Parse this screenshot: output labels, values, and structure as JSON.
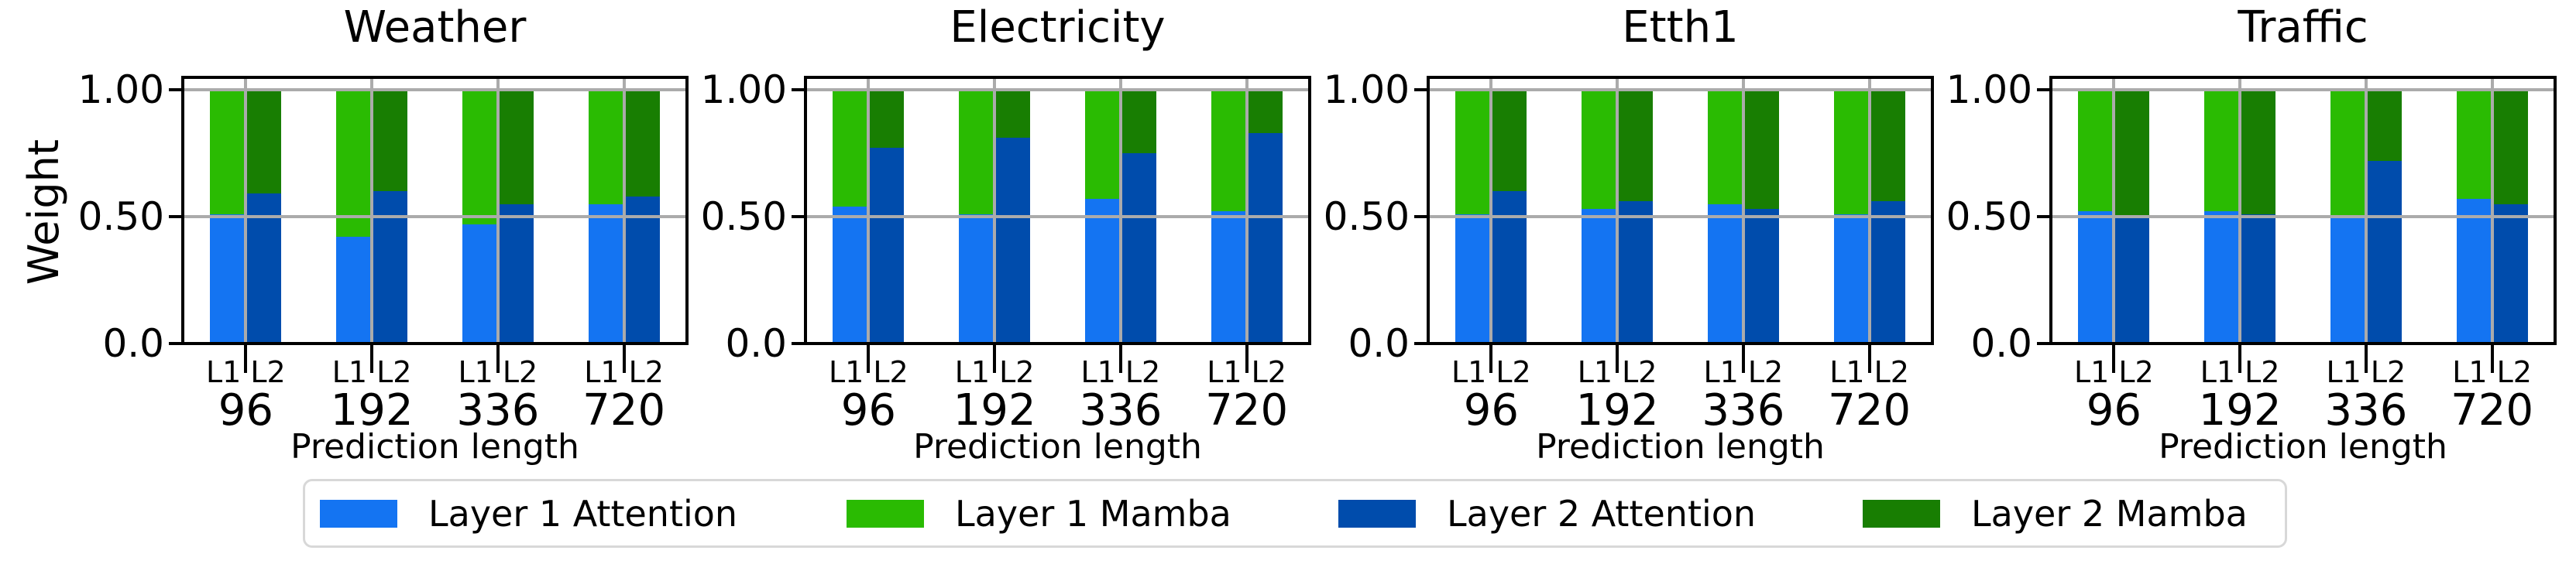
{
  "chart_data": {
    "type": "bar",
    "stacked": true,
    "ylabel": "Weight",
    "xlabel": "Prediction length",
    "ylim": [
      0,
      1.05
    ],
    "grid": true,
    "grid_color": "#ABABAB",
    "yticks": [
      {
        "label": "1.00",
        "value": 1.0
      },
      {
        "label": "0.50",
        "value": 0.5
      },
      {
        "label": "0.0",
        "value": 0.0
      }
    ],
    "bar_group_labels": [
      "L1",
      "L2"
    ],
    "categories": [
      "96",
      "192",
      "336",
      "720"
    ],
    "legend_position": "bottom",
    "series_colors": {
      "layer1_attention": "#1474F2",
      "layer1_mamba": "#2ABB02",
      "layer2_attention": "#004CAC",
      "layer2_mamba": "#187E02"
    },
    "legend": [
      {
        "label": "Layer 1 Attention",
        "color": "#1474F2",
        "color_key": "layer1_attention"
      },
      {
        "label": "Layer 1 Mamba",
        "color": "#2ABB02",
        "color_key": "layer1_mamba"
      },
      {
        "label": "Layer 2 Attention",
        "color": "#004CAC",
        "color_key": "layer2_attention"
      },
      {
        "label": "Layer 2 Mamba",
        "color": "#187E02",
        "color_key": "layer2_mamba"
      }
    ],
    "subplots": [
      {
        "title": "Weather",
        "groups": [
          {
            "prediction_length": "96",
            "l1_attention": 0.51,
            "l1_mamba": 0.49,
            "l2_attention": 0.59,
            "l2_mamba": 0.41
          },
          {
            "prediction_length": "192",
            "l1_attention": 0.42,
            "l1_mamba": 0.58,
            "l2_attention": 0.6,
            "l2_mamba": 0.4
          },
          {
            "prediction_length": "336",
            "l1_attention": 0.47,
            "l1_mamba": 0.53,
            "l2_attention": 0.55,
            "l2_mamba": 0.45
          },
          {
            "prediction_length": "720",
            "l1_attention": 0.55,
            "l1_mamba": 0.45,
            "l2_attention": 0.58,
            "l2_mamba": 0.42
          }
        ]
      },
      {
        "title": "Electricity",
        "groups": [
          {
            "prediction_length": "96",
            "l1_attention": 0.54,
            "l1_mamba": 0.46,
            "l2_attention": 0.77,
            "l2_mamba": 0.23
          },
          {
            "prediction_length": "192",
            "l1_attention": 0.51,
            "l1_mamba": 0.49,
            "l2_attention": 0.81,
            "l2_mamba": 0.19
          },
          {
            "prediction_length": "336",
            "l1_attention": 0.57,
            "l1_mamba": 0.43,
            "l2_attention": 0.75,
            "l2_mamba": 0.25
          },
          {
            "prediction_length": "720",
            "l1_attention": 0.52,
            "l1_mamba": 0.48,
            "l2_attention": 0.83,
            "l2_mamba": 0.17
          }
        ]
      },
      {
        "title": "Etth1",
        "groups": [
          {
            "prediction_length": "96",
            "l1_attention": 0.51,
            "l1_mamba": 0.49,
            "l2_attention": 0.6,
            "l2_mamba": 0.4
          },
          {
            "prediction_length": "192",
            "l1_attention": 0.53,
            "l1_mamba": 0.47,
            "l2_attention": 0.56,
            "l2_mamba": 0.44
          },
          {
            "prediction_length": "336",
            "l1_attention": 0.55,
            "l1_mamba": 0.45,
            "l2_attention": 0.53,
            "l2_mamba": 0.47
          },
          {
            "prediction_length": "720",
            "l1_attention": 0.51,
            "l1_mamba": 0.49,
            "l2_attention": 0.56,
            "l2_mamba": 0.44
          }
        ]
      },
      {
        "title": "Traffic",
        "groups": [
          {
            "prediction_length": "96",
            "l1_attention": 0.52,
            "l1_mamba": 0.48,
            "l2_attention": 0.5,
            "l2_mamba": 0.5
          },
          {
            "prediction_length": "192",
            "l1_attention": 0.52,
            "l1_mamba": 0.48,
            "l2_attention": 0.51,
            "l2_mamba": 0.49
          },
          {
            "prediction_length": "336",
            "l1_attention": 0.5,
            "l1_mamba": 0.5,
            "l2_attention": 0.72,
            "l2_mamba": 0.28
          },
          {
            "prediction_length": "720",
            "l1_attention": 0.57,
            "l1_mamba": 0.43,
            "l2_attention": 0.55,
            "l2_mamba": 0.45
          }
        ]
      }
    ]
  }
}
